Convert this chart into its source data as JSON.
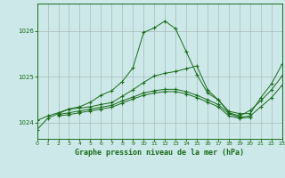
{
  "background_color": "#cce8e8",
  "grid_color": "#aabbbb",
  "line_color": "#1a6b1a",
  "title": "Graphe pression niveau de la mer (hPa)",
  "xlim": [
    0,
    23
  ],
  "ylim": [
    1023.65,
    1026.6
  ],
  "yticks": [
    1024,
    1025,
    1026
  ],
  "xticks": [
    0,
    1,
    2,
    3,
    4,
    5,
    6,
    7,
    8,
    9,
    10,
    11,
    12,
    13,
    14,
    15,
    16,
    17,
    18,
    19,
    20,
    21,
    22,
    23
  ],
  "line1_x": [
    0,
    1,
    2,
    3,
    4,
    5,
    6,
    7,
    8,
    9,
    10,
    11,
    12,
    13,
    14,
    15,
    16,
    17,
    18,
    19,
    20,
    21,
    22,
    23
  ],
  "line1_y": [
    1023.85,
    1024.1,
    1024.2,
    1024.3,
    1024.35,
    1024.45,
    1024.6,
    1024.7,
    1024.9,
    1025.2,
    1025.97,
    1026.07,
    1026.22,
    1026.05,
    1025.55,
    1025.05,
    1024.65,
    1024.5,
    1024.25,
    1024.2,
    1024.2,
    1024.55,
    1024.85,
    1025.28
  ],
  "line2_x": [
    0,
    1,
    2,
    3,
    4,
    5,
    6,
    7,
    8,
    9,
    10,
    11,
    12,
    13,
    14,
    15,
    16,
    17,
    18,
    19,
    20,
    21,
    22,
    23
  ],
  "line2_y": [
    1024.05,
    1024.15,
    1024.22,
    1024.3,
    1024.32,
    1024.35,
    1024.4,
    1024.44,
    1024.58,
    1024.72,
    1024.88,
    1025.02,
    1025.08,
    1025.12,
    1025.18,
    1025.24,
    1024.72,
    1024.5,
    1024.22,
    1024.15,
    1024.27,
    1024.48,
    1024.72,
    1025.02
  ],
  "line3_x": [
    2,
    3,
    4,
    5,
    6,
    7,
    8,
    9,
    10,
    11,
    12,
    13,
    14,
    15,
    16,
    17,
    18,
    19,
    20,
    21,
    22,
    23
  ],
  "line3_y": [
    1024.18,
    1024.22,
    1024.26,
    1024.3,
    1024.34,
    1024.38,
    1024.48,
    1024.56,
    1024.65,
    1024.7,
    1024.73,
    1024.73,
    1024.68,
    1024.6,
    1024.5,
    1024.4,
    1024.2,
    1024.12,
    1024.15,
    1024.35,
    1024.55,
    1024.82
  ],
  "line4_x": [
    2,
    3,
    4,
    5,
    6,
    7,
    8,
    9,
    10,
    11,
    12,
    13,
    14,
    15,
    16,
    17,
    18,
    19,
    20
  ],
  "line4_y": [
    1024.15,
    1024.18,
    1024.22,
    1024.26,
    1024.3,
    1024.34,
    1024.43,
    1024.52,
    1024.6,
    1024.65,
    1024.68,
    1024.68,
    1024.63,
    1024.55,
    1024.45,
    1024.35,
    1024.15,
    1024.1,
    1024.12
  ]
}
